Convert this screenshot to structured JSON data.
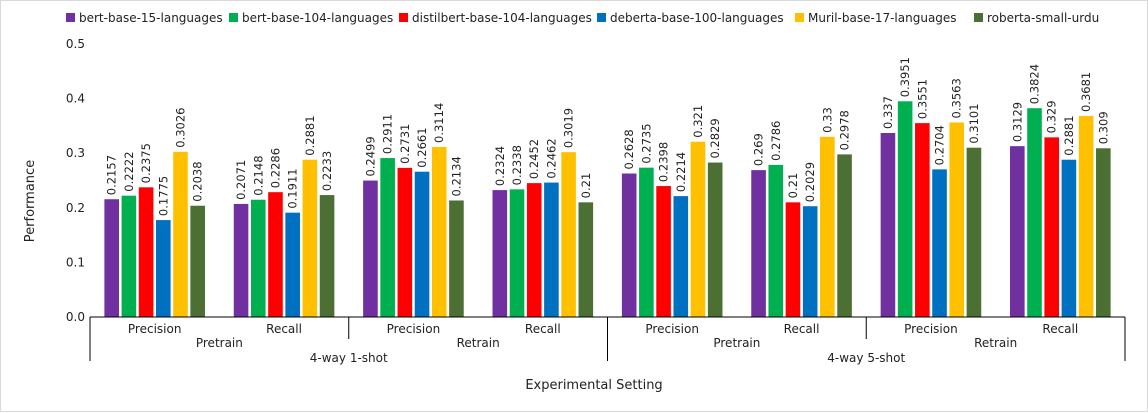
{
  "chart_data": {
    "type": "bar",
    "xlabel": "Experimental Setting",
    "ylabel": "Performance",
    "ylim": [
      0,
      0.5
    ],
    "yticks": [
      "0.0",
      "0.1",
      "0.2",
      "0.3",
      "0.4",
      "0.5"
    ],
    "legend_position": "top",
    "grid": false,
    "categories": [
      [
        "4-way 1-shot",
        "Pretrain",
        "Precision"
      ],
      [
        "4-way 1-shot",
        "Pretrain",
        "Recall"
      ],
      [
        "4-way 1-shot",
        "Retrain",
        "Precision"
      ],
      [
        "4-way 1-shot",
        "Retrain",
        "Recall"
      ],
      [
        "4-way 5-shot",
        "Pretrain",
        "Precision"
      ],
      [
        "4-way 5-shot",
        "Pretrain",
        "Recall"
      ],
      [
        "4-way 5-shot",
        "Retrain",
        "Precision"
      ],
      [
        "4-way 5-shot",
        "Retrain",
        "Recall"
      ]
    ],
    "series": [
      {
        "name": "bert-base-15-languages",
        "color": "#7030a0",
        "values": [
          0.2157,
          0.2071,
          0.2499,
          0.2324,
          0.2628,
          0.269,
          0.337,
          0.3129
        ],
        "labels": [
          "0.2157",
          "0.2071",
          "0.2499",
          "0.2324",
          "0.2628",
          "0.269",
          "0.337",
          "0.3129"
        ]
      },
      {
        "name": "bert-base-104-languages",
        "color": "#00b050",
        "values": [
          0.2222,
          0.2148,
          0.2911,
          0.2338,
          0.2735,
          0.2786,
          0.3951,
          0.3824
        ],
        "labels": [
          "0.2222",
          "0.2148",
          "0.2911",
          "0.2338",
          "0.2735",
          "0.2786",
          "0.3951",
          "0.3824"
        ]
      },
      {
        "name": "distilbert-base-104-languages",
        "color": "#ff0000",
        "values": [
          0.2375,
          0.2286,
          0.2731,
          0.2452,
          0.2398,
          0.21,
          0.3551,
          0.329
        ],
        "labels": [
          "0.2375",
          "0.2286",
          "0.2731",
          "0.2452",
          "0.2398",
          "0.21",
          "0.3551",
          "0.329"
        ]
      },
      {
        "name": "deberta-base-100-languages",
        "color": "#0070c0",
        "values": [
          0.1775,
          0.1911,
          0.2661,
          0.2462,
          0.2214,
          0.2029,
          0.2704,
          0.2881
        ],
        "labels": [
          "0.1775",
          "0.1911",
          "0.2661",
          "0.2462",
          "0.2214",
          "0.2029",
          "0.2704",
          "0.2881"
        ]
      },
      {
        "name": "Muril-base-17-languages",
        "color": "#ffc000",
        "values": [
          0.3026,
          0.2881,
          0.3114,
          0.3019,
          0.321,
          0.33,
          0.3563,
          0.3681
        ],
        "labels": [
          "0.3026",
          "0.2881",
          "0.3114",
          "0.3019",
          "0.321",
          "0.33",
          "0.3563",
          "0.3681"
        ]
      },
      {
        "name": "roberta-small-urdu",
        "color": "#4c7033",
        "values": [
          0.2038,
          0.2233,
          0.2134,
          0.21,
          0.2829,
          0.2978,
          0.3101,
          0.309
        ],
        "labels": [
          "0.2038",
          "0.2233",
          "0.2134",
          "0.21",
          "0.2829",
          "0.2978",
          "0.3101",
          "0.309"
        ]
      }
    ]
  }
}
